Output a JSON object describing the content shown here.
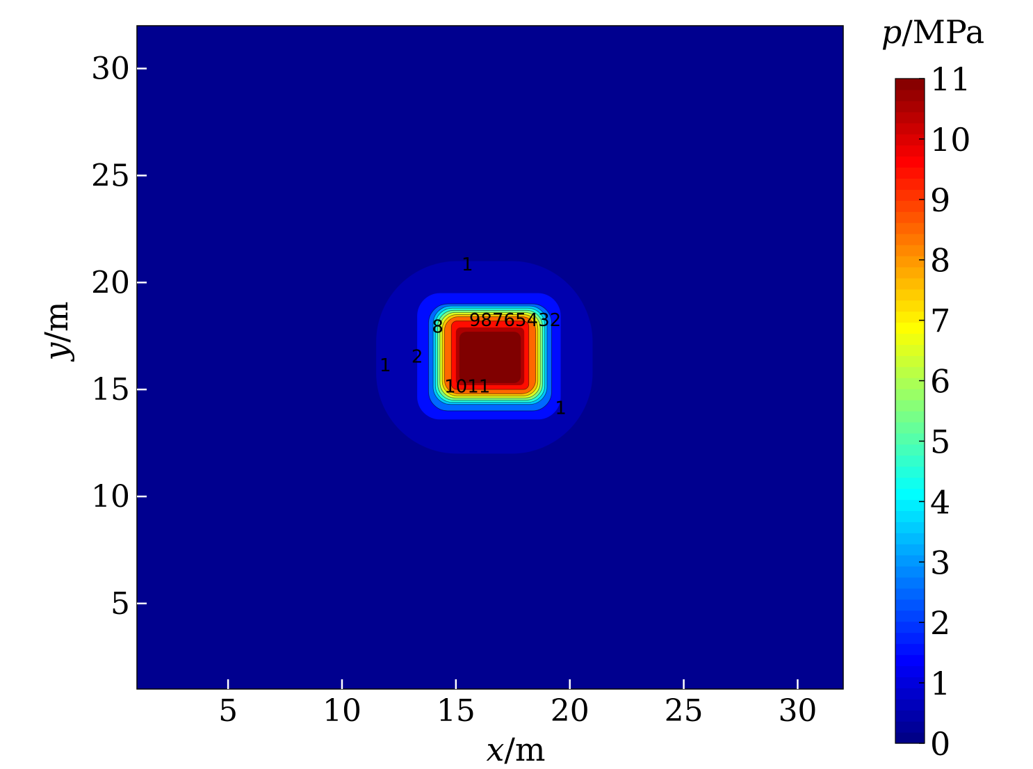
{
  "chart_data": {
    "type": "contour",
    "xlabel_var": "x",
    "xlabel_unit": "/m",
    "ylabel_var": "y",
    "ylabel_unit": "/m",
    "xlim": [
      1,
      32
    ],
    "ylim": [
      1,
      32
    ],
    "xticks": [
      5,
      10,
      15,
      20,
      25,
      30
    ],
    "yticks": [
      5,
      10,
      15,
      20,
      25,
      30
    ],
    "colorbar": {
      "label_var": "p",
      "label_unit": "/MPa",
      "range": [
        0,
        11
      ],
      "ticks": [
        0,
        1,
        2,
        3,
        4,
        5,
        6,
        7,
        8,
        9,
        10,
        11
      ],
      "colormap": "jet"
    },
    "background_value": 0,
    "peak": {
      "x": 16.5,
      "y": 16.5,
      "value": 11
    },
    "contour_regions": [
      {
        "level": 1,
        "x_range": [
          11.5,
          21.0
        ],
        "y_range": [
          12.0,
          21.0
        ]
      },
      {
        "level": 2,
        "x_range": [
          13.3,
          19.6
        ],
        "y_range": [
          13.6,
          19.5
        ]
      },
      {
        "level": 3,
        "x_range": [
          13.8,
          19.2
        ],
        "y_range": [
          14.0,
          19.0
        ]
      },
      {
        "level": 4,
        "x_range": [
          14.0,
          19.0
        ],
        "y_range": [
          14.3,
          18.9
        ]
      },
      {
        "level": 5,
        "x_range": [
          14.1,
          18.9
        ],
        "y_range": [
          14.4,
          18.8
        ]
      },
      {
        "level": 6,
        "x_range": [
          14.2,
          18.8
        ],
        "y_range": [
          14.5,
          18.7
        ]
      },
      {
        "level": 7,
        "x_range": [
          14.3,
          18.7
        ],
        "y_range": [
          14.6,
          18.6
        ]
      },
      {
        "level": 8,
        "x_range": [
          14.4,
          18.6
        ],
        "y_range": [
          14.7,
          18.5
        ]
      },
      {
        "level": 9,
        "x_range": [
          14.5,
          18.5
        ],
        "y_range": [
          14.8,
          18.4
        ]
      },
      {
        "level": 10,
        "x_range": [
          14.8,
          18.2
        ],
        "y_range": [
          15.0,
          18.2
        ]
      },
      {
        "level": 11,
        "x_range": [
          15.0,
          18.0
        ],
        "y_range": [
          15.2,
          17.9
        ]
      }
    ],
    "contour_labels": [
      {
        "text": "1",
        "x": 15.5,
        "y": 20.8
      },
      {
        "text": "1",
        "x": 11.9,
        "y": 16.1
      },
      {
        "text": "1",
        "x": 19.6,
        "y": 14.1
      },
      {
        "text": "2",
        "x": 13.3,
        "y": 16.5
      },
      {
        "text": "98765432",
        "x": 17.6,
        "y": 18.2
      },
      {
        "text": "1011",
        "x": 15.5,
        "y": 15.1
      },
      {
        "text": "8",
        "x": 14.2,
        "y": 17.9
      }
    ]
  }
}
